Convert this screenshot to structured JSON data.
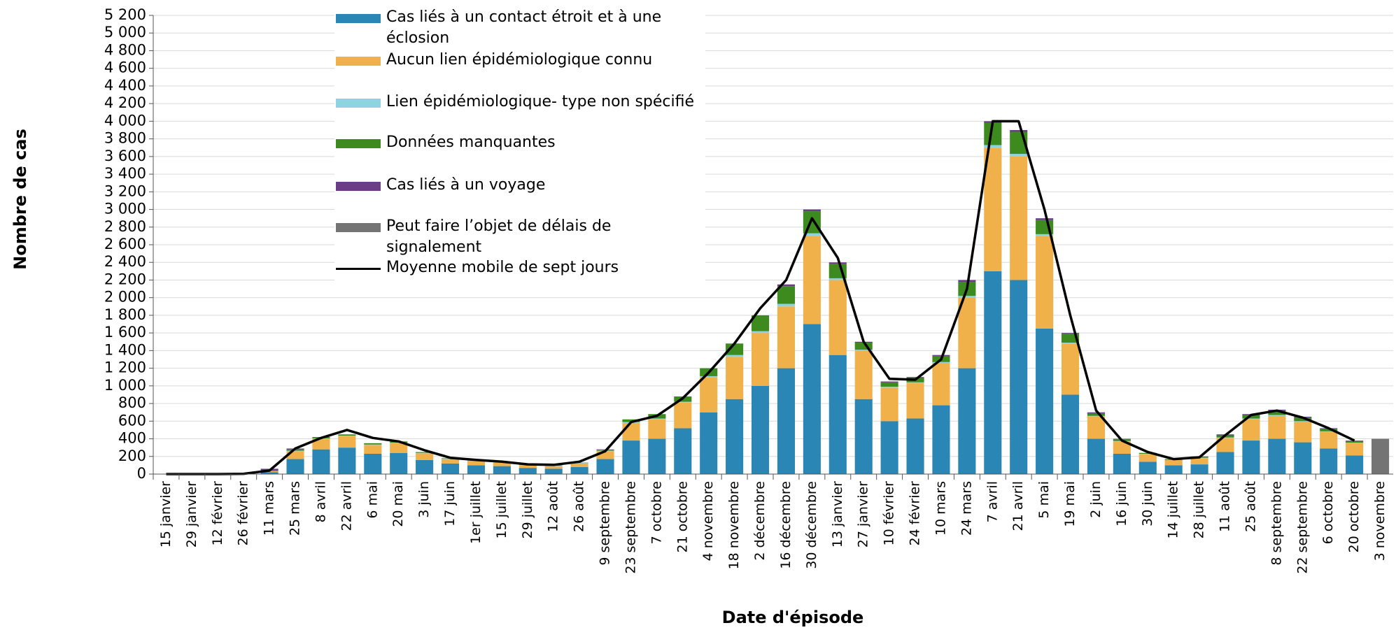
{
  "chart_data": {
    "type": "bar",
    "stacked": true,
    "y_label": "Nombre de cas",
    "x_label": "Date d'épisode",
    "categories": [
      "15 janvier",
      "29 janvier",
      "12 février",
      "26 février",
      "11 mars",
      "25 mars",
      "8 avril",
      "22 avril",
      "6 mai",
      "20 mai",
      "3 juin",
      "17 juin",
      "1er juillet",
      "15 juillet",
      "29 juillet",
      "12 août",
      "26 août",
      "9 septembre",
      "23 septembre",
      "7 octobre",
      "21 octobre",
      "4 novembre",
      "18 novembre",
      "2 décembre",
      "16 décembre",
      "30 décembre",
      "13 janvier",
      "27 janvier",
      "10 février",
      "24 février",
      "10 mars",
      "24 mars",
      "7 avril",
      "21 avril",
      "5 mai",
      "19 mai",
      "2 juin",
      "16 juin",
      "30 juin",
      "14 juillet",
      "28 juillet",
      "11 août",
      "25 août",
      "8 septembre",
      "22 septembre",
      "6 octobre",
      "20 octobre",
      "3 novembre"
    ],
    "series": [
      {
        "name": "Cas liés à un contact étroit et à une éclosion",
        "color": "#2a86b4",
        "values": [
          0,
          0,
          0,
          0,
          20,
          170,
          280,
          300,
          230,
          240,
          160,
          120,
          100,
          90,
          70,
          60,
          80,
          170,
          380,
          400,
          520,
          700,
          850,
          1000,
          1200,
          1700,
          1350,
          850,
          600,
          630,
          780,
          1200,
          2300,
          2200,
          1650,
          900,
          400,
          230,
          140,
          100,
          110,
          250,
          380,
          400,
          360,
          290,
          210,
          0
        ]
      },
      {
        "name": "Aucun lien épidémiologique connu",
        "color": "#f0b04a",
        "values": [
          0,
          0,
          0,
          0,
          15,
          90,
          120,
          130,
          100,
          110,
          75,
          50,
          50,
          40,
          30,
          30,
          40,
          90,
          200,
          220,
          290,
          400,
          480,
          600,
          700,
          1000,
          850,
          550,
          380,
          400,
          480,
          800,
          1400,
          1400,
          1050,
          580,
          250,
          140,
          85,
          60,
          70,
          160,
          240,
          260,
          230,
          190,
          140,
          0
        ]
      },
      {
        "name": "Lien épidémiologique- type non spécifié",
        "color": "#8dd3e0",
        "values": [
          0,
          0,
          0,
          0,
          0,
          5,
          5,
          5,
          5,
          5,
          5,
          5,
          5,
          5,
          5,
          5,
          5,
          5,
          10,
          10,
          10,
          10,
          20,
          20,
          30,
          30,
          20,
          10,
          10,
          10,
          10,
          20,
          30,
          30,
          20,
          10,
          10,
          5,
          5,
          0,
          5,
          5,
          10,
          10,
          10,
          5,
          5,
          0
        ]
      },
      {
        "name": "Données manquantes",
        "color": "#3d8a1e",
        "values": [
          0,
          0,
          0,
          0,
          5,
          15,
          15,
          15,
          15,
          15,
          10,
          5,
          5,
          5,
          5,
          5,
          5,
          10,
          30,
          50,
          60,
          90,
          130,
          180,
          200,
          250,
          160,
          80,
          50,
          50,
          70,
          160,
          250,
          250,
          160,
          100,
          30,
          20,
          10,
          10,
          10,
          25,
          40,
          50,
          40,
          30,
          20,
          0
        ]
      },
      {
        "name": "Cas liés à un voyage",
        "color": "#6a3d86",
        "values": [
          0,
          0,
          0,
          5,
          20,
          10,
          0,
          0,
          0,
          0,
          0,
          0,
          0,
          0,
          0,
          0,
          0,
          5,
          0,
          0,
          0,
          0,
          0,
          0,
          20,
          20,
          20,
          10,
          10,
          10,
          10,
          20,
          20,
          20,
          20,
          10,
          10,
          5,
          0,
          0,
          5,
          10,
          10,
          10,
          10,
          5,
          5,
          0
        ]
      },
      {
        "name": "Peut faire l’objet de délais de signalement",
        "color": "#747474",
        "values": [
          0,
          0,
          0,
          0,
          0,
          0,
          0,
          0,
          0,
          0,
          0,
          0,
          0,
          0,
          0,
          0,
          0,
          0,
          0,
          0,
          0,
          0,
          0,
          0,
          0,
          0,
          0,
          0,
          0,
          0,
          0,
          0,
          0,
          0,
          0,
          0,
          0,
          0,
          0,
          0,
          0,
          0,
          0,
          0,
          0,
          0,
          0,
          400
        ]
      },
      {
        "name": "Moyenne mobile de sept jours",
        "color": "#000000",
        "type": "line",
        "values": [
          0,
          0,
          0,
          3,
          40,
          290,
          410,
          500,
          410,
          370,
          270,
          185,
          160,
          140,
          110,
          105,
          140,
          260,
          590,
          660,
          860,
          1150,
          1480,
          1880,
          2200,
          2900,
          2450,
          1500,
          1080,
          1070,
          1300,
          2100,
          4000,
          4000,
          3000,
          1800,
          720,
          380,
          250,
          170,
          190,
          440,
          670,
          720,
          640,
          520,
          380,
          null
        ]
      }
    ],
    "ylim": [
      0,
      5200
    ],
    "yticks": [
      0,
      200,
      400,
      600,
      800,
      {
        "value": 1000,
        "label": "1 000"
      },
      {
        "value": 1200,
        "label": "1 200"
      },
      {
        "value": 1400,
        "label": "1 400"
      },
      {
        "value": 1600,
        "label": "1 600"
      },
      {
        "value": 1800,
        "label": "1 800"
      },
      {
        "value": 2000,
        "label": "2 000"
      },
      {
        "value": 2200,
        "label": "2 200"
      },
      {
        "value": 2400,
        "label": "2 400"
      },
      {
        "value": 2600,
        "label": "2 600"
      },
      {
        "value": 2800,
        "label": "2 800"
      },
      {
        "value": 3000,
        "label": "3 000"
      },
      {
        "value": 3200,
        "label": "3 200"
      },
      {
        "value": 3400,
        "label": "3 400"
      },
      {
        "value": 3600,
        "label": "3 600"
      },
      {
        "value": 3800,
        "label": "3 800"
      },
      {
        "value": 4000,
        "label": "4 000"
      },
      {
        "value": 4200,
        "label": "4 200"
      },
      {
        "value": 4400,
        "label": "4 400"
      },
      {
        "value": 4600,
        "label": "4 600"
      },
      {
        "value": 4800,
        "label": "4 800"
      },
      {
        "value": 5000,
        "label": "5 000"
      },
      {
        "value": 5200,
        "label": "5 200"
      }
    ],
    "grid": true
  }
}
